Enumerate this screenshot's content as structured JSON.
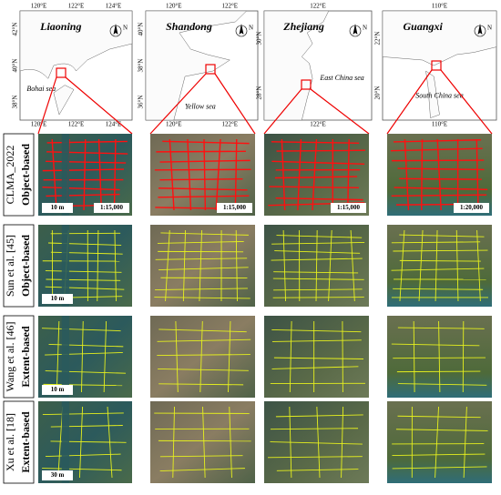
{
  "maps": [
    {
      "region": "Liaoning",
      "sea": "Bohai sea",
      "north": "N",
      "lon_top": [
        "120°E",
        "122°E",
        "124°E"
      ],
      "lon_bottom": [
        "120°E",
        "122°E",
        "124°E"
      ],
      "lat": [
        "42°N",
        "40°N",
        "38°N"
      ]
    },
    {
      "region": "Shandong",
      "sea": "Yellow sea",
      "north": "N",
      "lon_top": [
        "120°E",
        "122°E"
      ],
      "lon_bottom": [
        "120°E",
        "122°E"
      ],
      "lat": [
        "40°N",
        "38°N",
        "36°N"
      ]
    },
    {
      "region": "Zhejiang",
      "sea": "East China sea",
      "north": "N",
      "lon_top": [
        "122°E"
      ],
      "lon_bottom": [
        "122°E"
      ],
      "lat": [
        "30°N",
        "28°N"
      ]
    },
    {
      "region": "Guangxi",
      "sea": "South China sea",
      "north": "N",
      "lon_top": [
        "110°E"
      ],
      "lon_bottom": [
        "110°E"
      ],
      "lat": [
        "22°N",
        "20°N"
      ]
    }
  ],
  "rows": [
    {
      "source": "CLMA_2022",
      "method": "Object-based",
      "scale_bar": "10 m"
    },
    {
      "source": "Sun et al. [45]",
      "method": "Object-based",
      "scale_bar": "10 m"
    },
    {
      "source": "Wang et al. [46]",
      "method": "Extent-based",
      "scale_bar": "10 m"
    },
    {
      "source": "Xu et al. [18]",
      "method": "Extent-based",
      "scale_bar": "30 m"
    }
  ],
  "scale_ratios": [
    "1:15,000",
    "1:15,000",
    "1:15,000",
    "1:20,000"
  ]
}
